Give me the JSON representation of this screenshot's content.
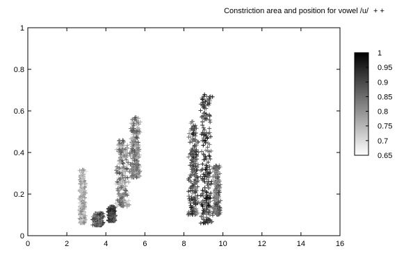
{
  "chart_data": {
    "type": "scatter",
    "title": "",
    "xlabel": "",
    "ylabel": "",
    "xlim": [
      0,
      16
    ],
    "ylim": [
      0,
      1
    ],
    "xticks": [
      "0",
      "2",
      "4",
      "6",
      "8",
      "10",
      "12",
      "14",
      "16"
    ],
    "yticks": [
      "0",
      "0.2",
      "0.4",
      "0.6",
      "0.8",
      "1"
    ],
    "grid": false,
    "marker": "+",
    "legend": {
      "position": "top-right",
      "entries": [
        {
          "name": "Constriction area and position for vowel /u/",
          "markers": "+ +"
        }
      ]
    },
    "colorbar": {
      "range": [
        0.65,
        1
      ],
      "colormap": "gray (white = low, black = high)",
      "ticks": [
        "1",
        "0.95",
        "0.9",
        "0.85",
        "0.8",
        "0.75",
        "0.7",
        "0.65"
      ]
    },
    "clusters": [
      {
        "x": [
          2.6,
          3.0
        ],
        "y": [
          0.06,
          0.32
        ],
        "level": [
          0.66,
          0.82
        ]
      },
      {
        "x": [
          3.3,
          3.9
        ],
        "y": [
          0.05,
          0.11
        ],
        "level": [
          0.78,
          0.95
        ]
      },
      {
        "x": [
          4.1,
          4.5
        ],
        "y": [
          0.07,
          0.14
        ],
        "level": [
          0.82,
          0.98
        ]
      },
      {
        "x": [
          4.5,
          5.2
        ],
        "y": [
          0.14,
          0.46
        ],
        "level": [
          0.68,
          0.9
        ]
      },
      {
        "x": [
          5.2,
          5.8
        ],
        "y": [
          0.28,
          0.57
        ],
        "level": [
          0.72,
          0.9
        ]
      },
      {
        "x": [
          8.2,
          8.8
        ],
        "y": [
          0.1,
          0.55
        ],
        "level": [
          0.78,
          0.97
        ]
      },
      {
        "x": [
          8.8,
          9.5
        ],
        "y": [
          0.06,
          0.68
        ],
        "level": [
          0.82,
          1.0
        ]
      },
      {
        "x": [
          9.5,
          9.9
        ],
        "y": [
          0.1,
          0.34
        ],
        "level": [
          0.74,
          0.92
        ]
      }
    ]
  }
}
